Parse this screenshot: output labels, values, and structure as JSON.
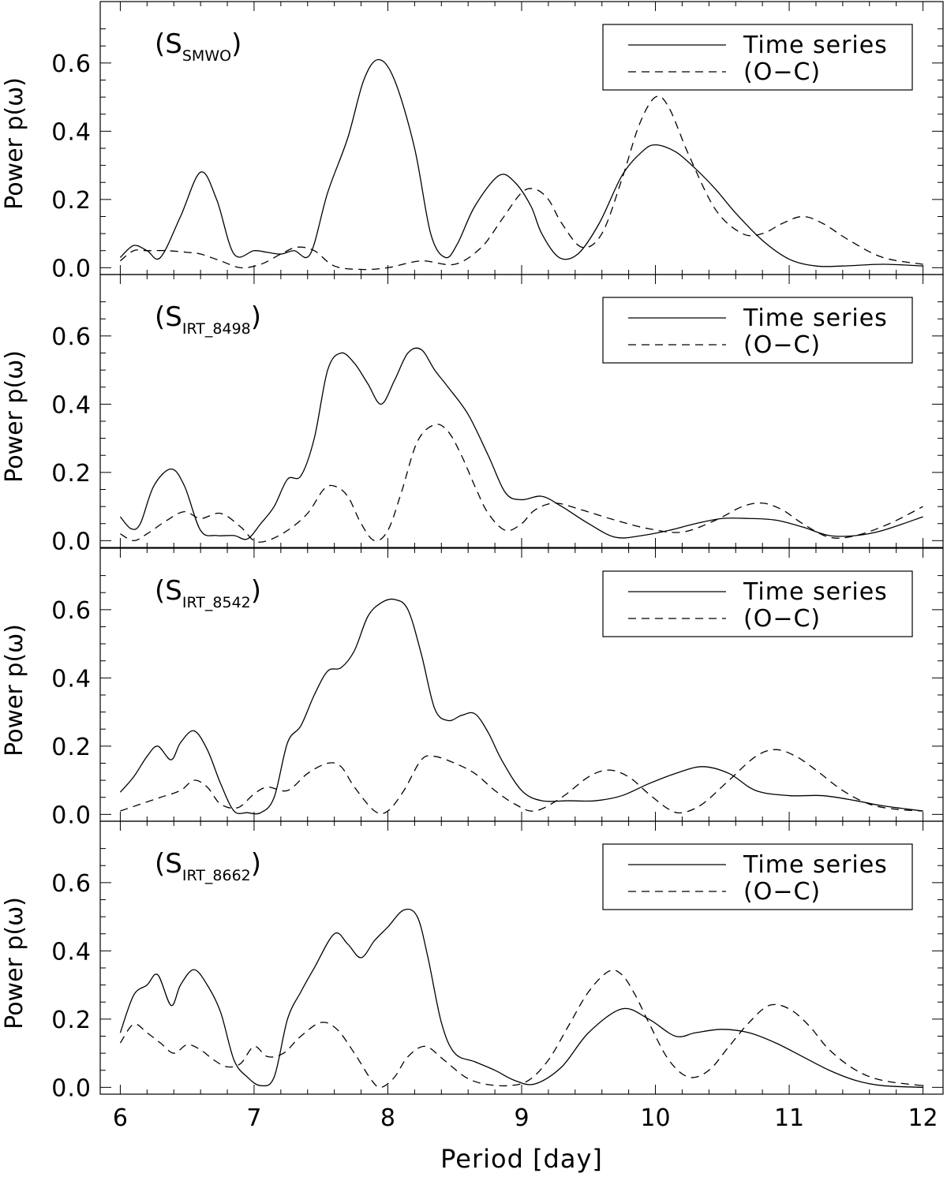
{
  "chart_data": {
    "type": "line",
    "xlabel": "Period [day]",
    "ylabel": "Power p(ω)",
    "xlim": [
      5.85,
      12.15
    ],
    "ylim": [
      -0.02,
      0.78
    ],
    "xticks": [
      6,
      7,
      8,
      9,
      10,
      11,
      12
    ],
    "xtick_labels": [
      "6",
      "7",
      "8",
      "9",
      "10",
      "11",
      "12"
    ],
    "yticks": [
      0.0,
      0.2,
      0.4,
      0.6
    ],
    "ytick_labels": [
      "0.0",
      "0.2",
      "0.4",
      "0.6"
    ],
    "legend_entries": [
      "Time series",
      "(O−C)"
    ],
    "legend_position": "top-right",
    "panels": [
      {
        "label": {
          "main": "(S",
          "sub": "SMWO",
          "close": ")"
        },
        "series": [
          {
            "name": "Time series",
            "style": "solid",
            "x": [
              6.0,
              6.1,
              6.2,
              6.3,
              6.45,
              6.6,
              6.72,
              6.85,
              7.0,
              7.1,
              7.2,
              7.3,
              7.42,
              7.55,
              7.7,
              7.82,
              7.93,
              8.05,
              8.2,
              8.32,
              8.43,
              8.52,
              8.65,
              8.83,
              8.95,
              9.07,
              9.15,
              9.28,
              9.42,
              9.58,
              9.75,
              9.9,
              10.0,
              10.15,
              10.3,
              10.45,
              10.6,
              10.8,
              11.0,
              11.2,
              11.4,
              11.7,
              12.0
            ],
            "y": [
              0.03,
              0.065,
              0.05,
              0.03,
              0.15,
              0.28,
              0.2,
              0.04,
              0.05,
              0.045,
              0.04,
              0.05,
              0.04,
              0.22,
              0.38,
              0.55,
              0.61,
              0.55,
              0.35,
              0.1,
              0.03,
              0.07,
              0.18,
              0.27,
              0.25,
              0.18,
              0.1,
              0.03,
              0.04,
              0.13,
              0.27,
              0.34,
              0.36,
              0.34,
              0.29,
              0.23,
              0.16,
              0.08,
              0.025,
              0.005,
              0.005,
              0.01,
              0.005
            ]
          },
          {
            "name": "(O−C)",
            "style": "dashed",
            "x": [
              6.0,
              6.1,
              6.2,
              6.35,
              6.5,
              6.6,
              6.75,
              6.9,
              7.05,
              7.2,
              7.32,
              7.45,
              7.6,
              7.8,
              8.0,
              8.25,
              8.5,
              8.7,
              8.85,
              9.0,
              9.1,
              9.2,
              9.3,
              9.45,
              9.6,
              9.75,
              9.88,
              10.0,
              10.1,
              10.25,
              10.45,
              10.65,
              10.8,
              10.95,
              11.1,
              11.25,
              11.45,
              11.7,
              12.0
            ],
            "y": [
              0.02,
              0.05,
              0.05,
              0.05,
              0.045,
              0.04,
              0.02,
              0.0,
              0.01,
              0.04,
              0.06,
              0.05,
              0.005,
              -0.005,
              0.0,
              0.02,
              0.01,
              0.06,
              0.14,
              0.22,
              0.23,
              0.2,
              0.13,
              0.06,
              0.1,
              0.26,
              0.42,
              0.5,
              0.47,
              0.33,
              0.17,
              0.1,
              0.1,
              0.13,
              0.15,
              0.13,
              0.08,
              0.03,
              0.01
            ]
          }
        ]
      },
      {
        "label": {
          "main": "(S",
          "sub": "IRT_8498",
          "close": ")"
        },
        "series": [
          {
            "name": "Time series",
            "style": "solid",
            "x": [
              6.0,
              6.08,
              6.15,
              6.25,
              6.38,
              6.48,
              6.6,
              6.72,
              6.85,
              6.95,
              7.05,
              7.15,
              7.25,
              7.35,
              7.45,
              7.55,
              7.65,
              7.75,
              7.85,
              7.95,
              8.05,
              8.15,
              8.25,
              8.35,
              8.45,
              8.6,
              8.75,
              8.88,
              9.0,
              9.15,
              9.3,
              9.5,
              9.7,
              9.9,
              10.1,
              10.3,
              10.5,
              10.7,
              10.9,
              11.1,
              11.3,
              11.5,
              11.7,
              12.0
            ],
            "y": [
              0.07,
              0.035,
              0.05,
              0.16,
              0.21,
              0.16,
              0.03,
              0.015,
              0.015,
              0.005,
              0.05,
              0.1,
              0.18,
              0.19,
              0.3,
              0.5,
              0.55,
              0.52,
              0.46,
              0.4,
              0.47,
              0.55,
              0.56,
              0.5,
              0.45,
              0.37,
              0.25,
              0.14,
              0.12,
              0.13,
              0.1,
              0.05,
              0.01,
              0.015,
              0.03,
              0.05,
              0.065,
              0.065,
              0.06,
              0.04,
              0.015,
              0.015,
              0.03,
              0.07
            ]
          },
          {
            "name": "(O−C)",
            "style": "dashed",
            "x": [
              6.0,
              6.1,
              6.2,
              6.35,
              6.48,
              6.6,
              6.75,
              6.9,
              7.0,
              7.1,
              7.25,
              7.4,
              7.52,
              7.6,
              7.7,
              7.8,
              7.9,
              8.0,
              8.1,
              8.22,
              8.35,
              8.45,
              8.55,
              8.65,
              8.75,
              8.88,
              9.0,
              9.1,
              9.25,
              9.45,
              9.7,
              9.95,
              10.2,
              10.45,
              10.65,
              10.8,
              10.95,
              11.1,
              11.3,
              11.5,
              11.75,
              12.0
            ],
            "y": [
              0.02,
              0.0,
              0.02,
              0.06,
              0.085,
              0.065,
              0.08,
              0.04,
              0.0,
              0.0,
              0.03,
              0.08,
              0.15,
              0.16,
              0.13,
              0.05,
              0.0,
              0.03,
              0.14,
              0.29,
              0.34,
              0.32,
              0.25,
              0.16,
              0.08,
              0.03,
              0.05,
              0.09,
              0.11,
              0.09,
              0.06,
              0.035,
              0.025,
              0.06,
              0.1,
              0.11,
              0.09,
              0.05,
              0.01,
              0.015,
              0.05,
              0.1
            ]
          }
        ]
      },
      {
        "label": {
          "main": "(S",
          "sub": "IRT_8542",
          "close": ")"
        },
        "series": [
          {
            "name": "Time series",
            "style": "solid",
            "x": [
              6.0,
              6.1,
              6.2,
              6.28,
              6.38,
              6.45,
              6.55,
              6.65,
              6.75,
              6.85,
              6.95,
              7.05,
              7.15,
              7.25,
              7.35,
              7.45,
              7.55,
              7.65,
              7.75,
              7.85,
              7.95,
              8.05,
              8.15,
              8.25,
              8.35,
              8.45,
              8.55,
              8.65,
              8.75,
              8.85,
              9.0,
              9.15,
              9.35,
              9.55,
              9.75,
              9.95,
              10.15,
              10.35,
              10.55,
              10.75,
              11.0,
              11.25,
              11.5,
              11.7,
              12.0
            ],
            "y": [
              0.065,
              0.11,
              0.17,
              0.2,
              0.16,
              0.21,
              0.245,
              0.19,
              0.09,
              0.01,
              0.005,
              0.005,
              0.05,
              0.21,
              0.26,
              0.35,
              0.42,
              0.43,
              0.48,
              0.58,
              0.62,
              0.63,
              0.6,
              0.47,
              0.31,
              0.275,
              0.29,
              0.295,
              0.24,
              0.16,
              0.07,
              0.04,
              0.04,
              0.04,
              0.055,
              0.09,
              0.12,
              0.14,
              0.12,
              0.07,
              0.055,
              0.055,
              0.04,
              0.025,
              0.01
            ]
          },
          {
            "name": "(O−C)",
            "style": "dashed",
            "x": [
              6.0,
              6.15,
              6.3,
              6.45,
              6.55,
              6.65,
              6.75,
              6.88,
              7.0,
              7.1,
              7.25,
              7.4,
              7.55,
              7.65,
              7.75,
              7.9,
              8.0,
              8.12,
              8.25,
              8.35,
              8.5,
              8.65,
              8.8,
              8.95,
              9.1,
              9.3,
              9.5,
              9.65,
              9.8,
              9.95,
              10.1,
              10.2,
              10.35,
              10.55,
              10.75,
              10.9,
              11.05,
              11.2,
              11.4,
              11.6,
              11.8,
              12.0
            ],
            "y": [
              0.01,
              0.03,
              0.05,
              0.07,
              0.1,
              0.08,
              0.03,
              0.02,
              0.06,
              0.08,
              0.07,
              0.12,
              0.15,
              0.14,
              0.08,
              0.01,
              0.01,
              0.07,
              0.16,
              0.17,
              0.15,
              0.12,
              0.07,
              0.03,
              0.01,
              0.05,
              0.11,
              0.13,
              0.11,
              0.06,
              0.015,
              0.005,
              0.03,
              0.1,
              0.17,
              0.19,
              0.17,
              0.13,
              0.07,
              0.03,
              0.015,
              0.01
            ]
          }
        ]
      },
      {
        "label": {
          "main": "(S",
          "sub": "IRT_8662",
          "close": ")"
        },
        "series": [
          {
            "name": "Time series",
            "style": "solid",
            "x": [
              6.0,
              6.1,
              6.2,
              6.28,
              6.38,
              6.45,
              6.55,
              6.65,
              6.75,
              6.85,
              6.95,
              7.05,
              7.15,
              7.25,
              7.35,
              7.45,
              7.6,
              7.7,
              7.8,
              7.9,
              8.0,
              8.12,
              8.22,
              8.3,
              8.4,
              8.5,
              8.65,
              8.8,
              8.95,
              9.1,
              9.3,
              9.5,
              9.75,
              9.95,
              10.15,
              10.3,
              10.5,
              10.7,
              10.9,
              11.1,
              11.3,
              11.5,
              11.7,
              12.0
            ],
            "y": [
              0.16,
              0.27,
              0.3,
              0.33,
              0.24,
              0.3,
              0.345,
              0.3,
              0.22,
              0.08,
              0.03,
              0.005,
              0.03,
              0.2,
              0.28,
              0.35,
              0.45,
              0.42,
              0.38,
              0.43,
              0.47,
              0.52,
              0.5,
              0.38,
              0.19,
              0.1,
              0.075,
              0.05,
              0.02,
              0.01,
              0.06,
              0.16,
              0.23,
              0.2,
              0.15,
              0.16,
              0.17,
              0.16,
              0.13,
              0.09,
              0.05,
              0.02,
              0.005,
              0.0
            ]
          },
          {
            "name": "(O−C)",
            "style": "dashed",
            "x": [
              6.0,
              6.1,
              6.2,
              6.3,
              6.4,
              6.5,
              6.6,
              6.7,
              6.8,
              6.9,
              7.0,
              7.1,
              7.22,
              7.35,
              7.5,
              7.62,
              7.75,
              7.88,
              7.95,
              8.05,
              8.15,
              8.28,
              8.42,
              8.58,
              8.72,
              8.9,
              9.05,
              9.2,
              9.35,
              9.5,
              9.65,
              9.75,
              9.85,
              9.95,
              10.1,
              10.25,
              10.4,
              10.55,
              10.7,
              10.85,
              11.0,
              11.15,
              11.3,
              11.5,
              11.7,
              12.0
            ],
            "y": [
              0.13,
              0.185,
              0.16,
              0.13,
              0.1,
              0.125,
              0.11,
              0.08,
              0.06,
              0.07,
              0.12,
              0.09,
              0.1,
              0.15,
              0.19,
              0.17,
              0.1,
              0.02,
              0.0,
              0.03,
              0.09,
              0.12,
              0.08,
              0.03,
              0.01,
              0.005,
              0.02,
              0.08,
              0.18,
              0.28,
              0.34,
              0.33,
              0.27,
              0.19,
              0.08,
              0.03,
              0.05,
              0.12,
              0.19,
              0.24,
              0.23,
              0.18,
              0.11,
              0.05,
              0.02,
              0.005
            ]
          }
        ]
      }
    ]
  }
}
